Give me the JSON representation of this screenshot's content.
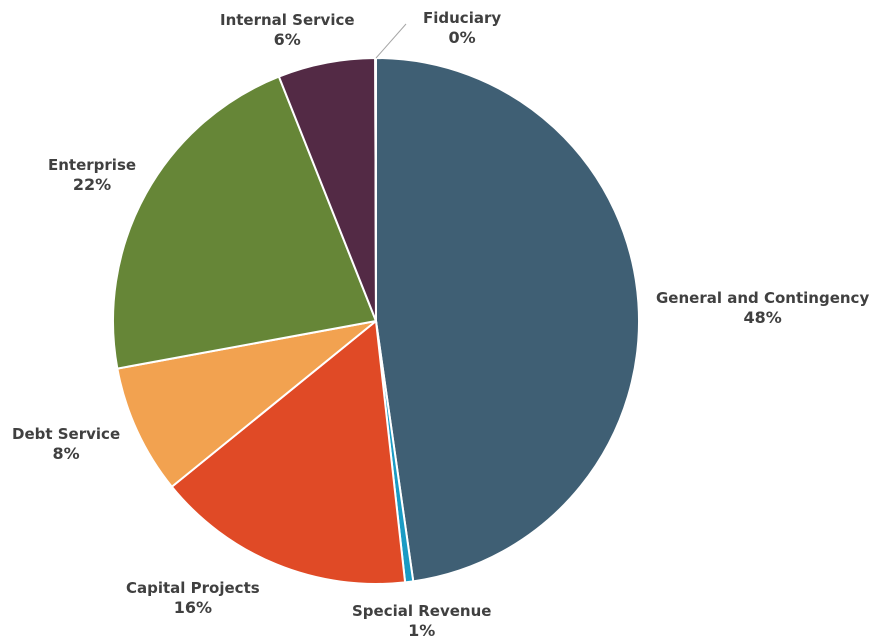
{
  "chart_data": {
    "type": "pie",
    "title": "",
    "categories": [
      "General and Contingency",
      "Special Revenue",
      "Capital Projects",
      "Debt Service",
      "Enterprise",
      "Internal Service",
      "Fiduciary"
    ],
    "values": [
      48,
      0.5,
      16,
      8,
      22,
      6,
      0.05
    ],
    "display_labels": [
      "48%",
      "1%",
      "16%",
      "8%",
      "22%",
      "6%",
      "0%"
    ],
    "colors": [
      "#3f5f74",
      "#1a9bc4",
      "#e04a26",
      "#f2a250",
      "#668637",
      "#532a45",
      "#3f5f74"
    ],
    "start": "12 o'clock, clockwise",
    "legend": "none"
  }
}
